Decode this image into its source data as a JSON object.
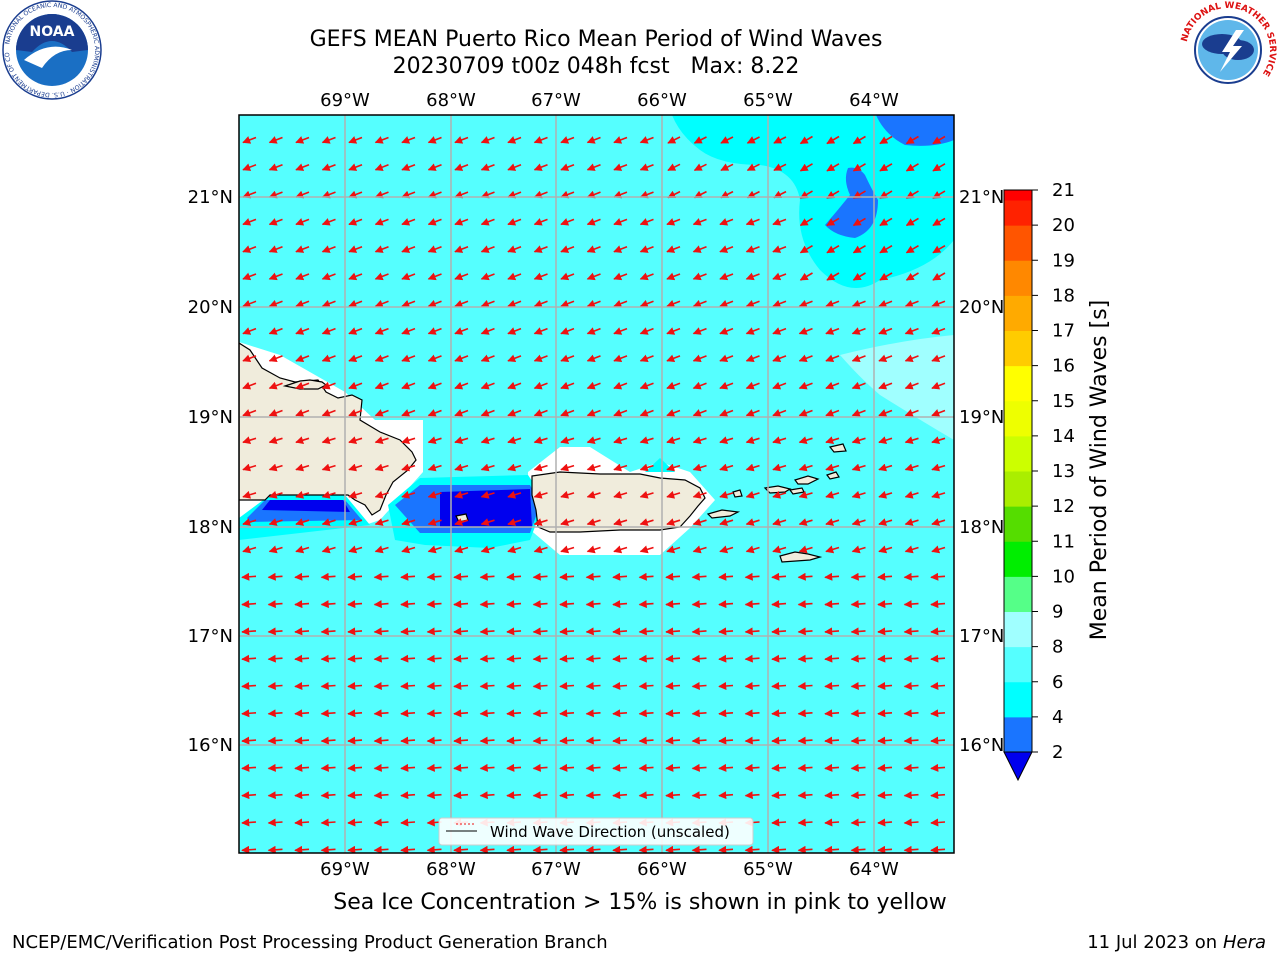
{
  "header": {
    "title_line1": "GEFS MEAN Puerto Rico Mean Period of Wind Waves",
    "title_line2": "20230709 t00z 048h fcst   Max: 8.22"
  },
  "map": {
    "lon_labels": [
      "69°W",
      "68°W",
      "67°W",
      "66°W",
      "65°W",
      "64°W"
    ],
    "lat_labels": [
      "21°N",
      "20°N",
      "19°N",
      "18°N",
      "17°N",
      "16°N"
    ],
    "legend_label": "Wind Wave Direction (unscaled)",
    "colors": {
      "ocean": "#55ffff",
      "land": "#f0ecdc",
      "band_4_6": "#00ffff",
      "band_2_4": "#1a75ff",
      "band_lt2": "#0000ee",
      "band_8_9": "#a0ffff",
      "arrow": "#ee1111"
    }
  },
  "colorbar": {
    "label": "Mean Period of Wind Waves [s]",
    "ticks": [
      "2",
      "4",
      "6",
      "8",
      "9",
      "10",
      "11",
      "12",
      "13",
      "14",
      "15",
      "16",
      "17",
      "18",
      "19",
      "20",
      "21"
    ],
    "colors": [
      "#1a75ff",
      "#00ffff",
      "#55ffff",
      "#a0ffff",
      "#55ff88",
      "#00ee00",
      "#55dd00",
      "#aaee00",
      "#ccff00",
      "#eeff00",
      "#ffff00",
      "#ffcc00",
      "#ffaa00",
      "#ff8800",
      "#ff5500",
      "#ff2200"
    ],
    "top_color": "#ff0000",
    "under_color": "#0000ee"
  },
  "caption": "Sea Ice Concentration > 15% is shown in pink to yellow",
  "footer": {
    "left": "NCEP/EMC/Verification Post Processing Product Generation Branch",
    "right_prefix": "11 Jul 2023 on ",
    "right_machine": "Hera"
  },
  "logos": {
    "noaa_text": "NOAA",
    "noaa_ring_text": "NATIONAL OCEANIC AND ATMOSPHERIC ADMINISTRATION · U.S. DEPARTMENT OF COMMERCE",
    "nws_ring_text": "NATIONAL WEATHER SERVICE"
  }
}
